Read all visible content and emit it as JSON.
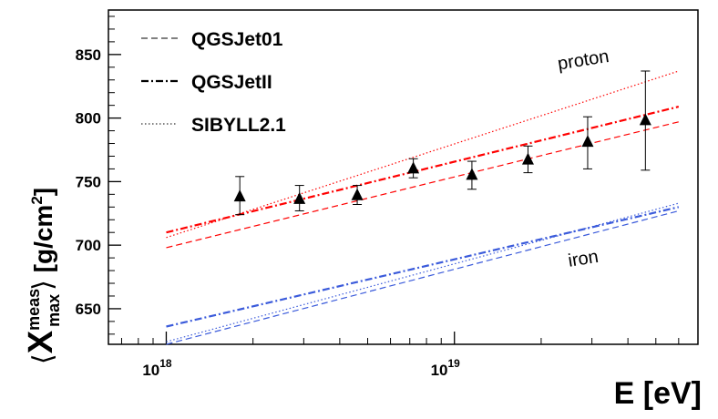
{
  "chart_data": {
    "type": "line",
    "xscale": "log",
    "xlim": [
      6.3e+17,
      7e+19
    ],
    "ylim": [
      622,
      885
    ],
    "xlabel": "E [eV]",
    "ylabel": {
      "open": "⟨",
      "symbol": "X",
      "superscript": "meas",
      "subscript": "max",
      "close": "⟩",
      "unit": "[g/cm",
      "unit_power": "2",
      "unit_close": "]"
    },
    "xticks": [
      {
        "value": 1e+18,
        "base": "10",
        "exponent": "18"
      },
      {
        "value": 1e+19,
        "base": "10",
        "exponent": "19"
      }
    ],
    "yticks": [
      650,
      700,
      750,
      800,
      850
    ],
    "legend": [
      {
        "label": "QGSJet01",
        "style": "dashed"
      },
      {
        "label": "QGSJetII",
        "style": "dashdot"
      },
      {
        "label": "SIBYLL2.1",
        "style": "dotted"
      }
    ],
    "annotations": [
      {
        "text": "proton",
        "x": 2.3e+19,
        "y": 838,
        "rotate": -9
      },
      {
        "text": "iron",
        "x": 2.5e+19,
        "y": 683,
        "rotate": -9
      }
    ],
    "series": [
      {
        "name": "QGSJet01 proton",
        "color": "#ff0000",
        "style": "dashed",
        "width": 1.2,
        "x": [
          1e+18,
          6e+19
        ],
        "y": [
          698,
          797
        ]
      },
      {
        "name": "QGSJetII proton",
        "color": "#ff0000",
        "style": "dashdot",
        "width": 2.2,
        "x": [
          1e+18,
          6e+19
        ],
        "y": [
          710,
          809
        ]
      },
      {
        "name": "SIBYLL2.1 proton",
        "color": "#ff0000",
        "style": "dotted",
        "width": 1.2,
        "x": [
          1e+18,
          6e+19
        ],
        "y": [
          706,
          837
        ]
      },
      {
        "name": "QGSJet01 iron",
        "color": "#3b5bdb",
        "style": "dashed",
        "width": 1.2,
        "x": [
          1e+18,
          6e+19
        ],
        "y": [
          622,
          727
        ]
      },
      {
        "name": "QGSJetII iron",
        "color": "#3b5bdb",
        "style": "dashdot",
        "width": 2.2,
        "x": [
          1e+18,
          6e+19
        ],
        "y": [
          636,
          730
        ]
      },
      {
        "name": "SIBYLL2.1 iron",
        "color": "#3b5bdb",
        "style": "dotted",
        "width": 1.2,
        "x": [
          1e+18,
          6e+19
        ],
        "y": [
          624,
          733
        ]
      }
    ],
    "data_points": {
      "name": "measurement",
      "marker": "triangle",
      "x": [
        1.8e+18,
        2.9e+18,
        4.6e+18,
        7.2e+18,
        1.15e+19,
        1.8e+19,
        2.9e+19,
        4.6e+19
      ],
      "y": [
        738,
        736,
        739,
        760,
        755,
        767,
        781,
        798
      ],
      "err_low": [
        14,
        9,
        7,
        7,
        11,
        10,
        21,
        39
      ],
      "err_high": [
        16,
        11,
        8,
        8,
        11,
        11,
        20,
        39
      ]
    }
  }
}
